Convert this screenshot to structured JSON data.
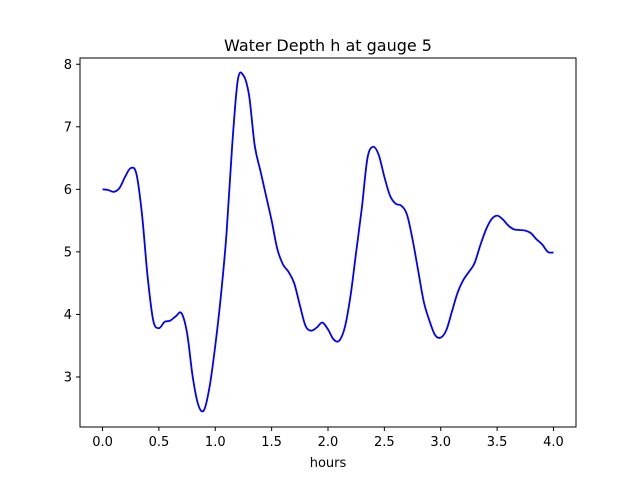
{
  "chart_data": {
    "type": "line",
    "title": "Water Depth h at gauge 5",
    "xlabel": "hours",
    "ylabel": "",
    "xlim": [
      -0.2,
      4.2
    ],
    "ylim": [
      2.2,
      8.1
    ],
    "xticks": [
      0.0,
      0.5,
      1.0,
      1.5,
      2.0,
      2.5,
      3.0,
      3.5,
      4.0
    ],
    "xtick_labels": [
      "0.0",
      "0.5",
      "1.0",
      "1.5",
      "2.0",
      "2.5",
      "3.0",
      "3.5",
      "4.0"
    ],
    "yticks": [
      3,
      4,
      5,
      6,
      7,
      8
    ],
    "ytick_labels": [
      "3",
      "4",
      "5",
      "6",
      "7",
      "8"
    ],
    "grid": false,
    "series": [
      {
        "color": "#0000ff",
        "x": [
          0.0,
          0.05,
          0.1,
          0.15,
          0.2,
          0.25,
          0.3,
          0.35,
          0.4,
          0.45,
          0.5,
          0.55,
          0.6,
          0.65,
          0.7,
          0.75,
          0.8,
          0.85,
          0.9,
          0.95,
          1.0,
          1.05,
          1.1,
          1.15,
          1.2,
          1.25,
          1.3,
          1.35,
          1.4,
          1.45,
          1.5,
          1.55,
          1.6,
          1.65,
          1.7,
          1.75,
          1.8,
          1.85,
          1.9,
          1.95,
          2.0,
          2.05,
          2.1,
          2.15,
          2.2,
          2.25,
          2.3,
          2.35,
          2.4,
          2.45,
          2.5,
          2.55,
          2.6,
          2.65,
          2.7,
          2.75,
          2.8,
          2.85,
          2.9,
          2.95,
          3.0,
          3.05,
          3.1,
          3.15,
          3.2,
          3.25,
          3.3,
          3.35,
          3.4,
          3.45,
          3.5,
          3.55,
          3.6,
          3.65,
          3.7,
          3.75,
          3.8,
          3.85,
          3.9,
          3.95,
          4.0
        ],
        "y": [
          6.0,
          5.99,
          5.96,
          6.02,
          6.2,
          6.34,
          6.25,
          5.6,
          4.6,
          3.9,
          3.78,
          3.88,
          3.9,
          3.97,
          4.02,
          3.7,
          3.0,
          2.55,
          2.47,
          2.85,
          3.5,
          4.3,
          5.3,
          6.7,
          7.75,
          7.82,
          7.5,
          6.7,
          6.3,
          5.9,
          5.5,
          5.05,
          4.8,
          4.68,
          4.5,
          4.15,
          3.82,
          3.74,
          3.79,
          3.87,
          3.76,
          3.6,
          3.58,
          3.8,
          4.3,
          5.0,
          5.7,
          6.5,
          6.68,
          6.55,
          6.2,
          5.9,
          5.77,
          5.74,
          5.6,
          5.2,
          4.7,
          4.2,
          3.9,
          3.67,
          3.63,
          3.75,
          4.05,
          4.35,
          4.55,
          4.68,
          4.82,
          5.1,
          5.35,
          5.52,
          5.58,
          5.52,
          5.42,
          5.36,
          5.35,
          5.34,
          5.3,
          5.2,
          5.12,
          5.0,
          4.99
        ]
      }
    ]
  }
}
